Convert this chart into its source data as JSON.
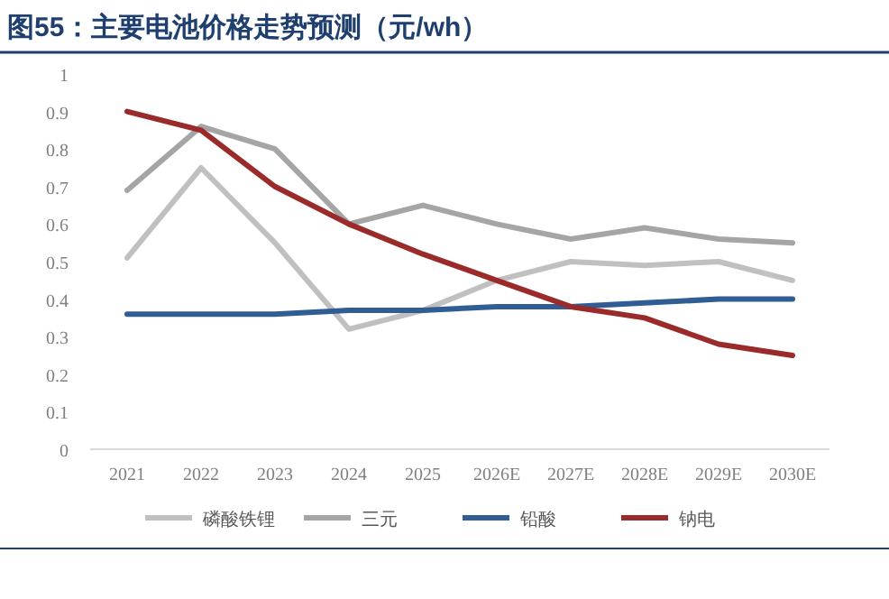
{
  "chart_data": {
    "type": "line",
    "title": "图55：主要电池价格走势预测（元/wh）",
    "categories": [
      "2021",
      "2022",
      "2023",
      "2024",
      "2025",
      "2026E",
      "2027E",
      "2028E",
      "2029E",
      "2030E"
    ],
    "series": [
      {
        "name": "磷酸铁锂",
        "color": "#c0c0c0",
        "values": [
          0.51,
          0.75,
          0.55,
          0.32,
          0.37,
          0.45,
          0.5,
          0.49,
          0.5,
          0.45
        ]
      },
      {
        "name": "三元",
        "color": "#a5a5a5",
        "values": [
          0.69,
          0.86,
          0.8,
          0.6,
          0.65,
          0.6,
          0.56,
          0.59,
          0.56,
          0.55
        ]
      },
      {
        "name": "铅酸",
        "color": "#2f5d94",
        "values": [
          0.36,
          0.36,
          0.36,
          0.37,
          0.37,
          0.38,
          0.38,
          0.39,
          0.4,
          0.4
        ]
      },
      {
        "name": "钠电",
        "color": "#9b2b2b",
        "values": [
          0.9,
          0.85,
          0.7,
          0.6,
          0.52,
          0.45,
          0.38,
          0.35,
          0.28,
          0.25
        ]
      }
    ],
    "ylim": [
      0,
      1
    ],
    "yticks": [
      0,
      0.1,
      0.2,
      0.3,
      0.4,
      0.5,
      0.6,
      0.7,
      0.8,
      0.9,
      1
    ],
    "grid": false,
    "legend": "bottom",
    "marker": "none",
    "line_style": "solid"
  }
}
